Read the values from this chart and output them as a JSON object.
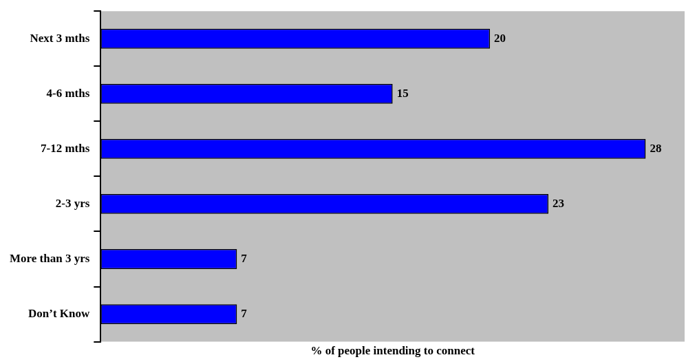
{
  "chart_data": {
    "type": "bar",
    "orientation": "horizontal",
    "xlabel": "% of people intending to connect",
    "categories": [
      "Next 3 mths",
      "4-6 mths",
      "7-12 mths",
      "2-3 yrs",
      "More than 3 yrs",
      "Don’t Know"
    ],
    "values": [
      20,
      15,
      28,
      23,
      7,
      7
    ],
    "color": "#0000ff",
    "data_labels": true,
    "grid": false,
    "legend": false
  }
}
